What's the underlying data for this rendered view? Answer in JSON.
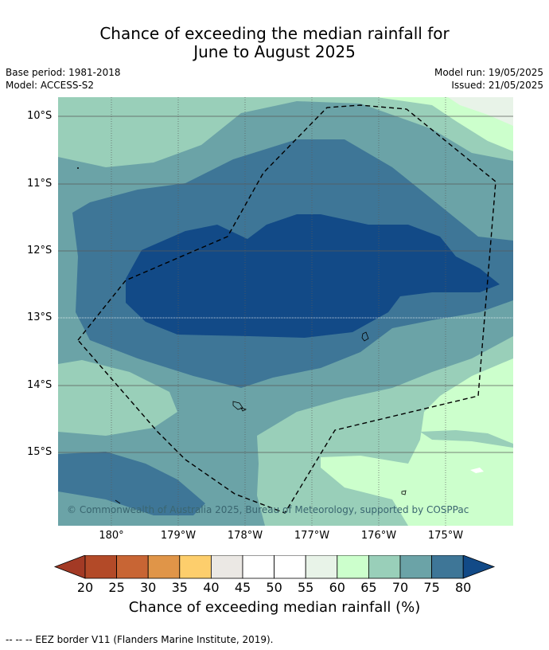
{
  "title": {
    "line1": "Chance of exceeding the median rainfall for",
    "line2": "June to August 2025"
  },
  "meta": {
    "base_period": "Base period: 1981-2018",
    "model": "Model: ACCESS-S2",
    "model_run": "Model run: 19/05/2025",
    "issued": "Issued: 21/05/2025"
  },
  "map": {
    "lat_labels": [
      "10°S",
      "11°S",
      "12°S",
      "13°S",
      "14°S",
      "15°S"
    ],
    "lon_labels": [
      "180°",
      "179°W",
      "178°W",
      "177°W",
      "176°W",
      "175°W"
    ],
    "copyright": "© Commonwealth of Australia 2025, Bureau of Meteorology, supported by COSPPac",
    "colors": {
      "c60_65": "#ccffcc",
      "c65_70": "#99cfb9",
      "c70_75": "#6ba3a7",
      "c75_80": "#3e7697",
      "c80_plus": "#124a87",
      "c55_60": "#e8f3e8"
    }
  },
  "colorbar": {
    "ticks": [
      "20",
      "25",
      "30",
      "35",
      "40",
      "45",
      "50",
      "55",
      "60",
      "65",
      "70",
      "75",
      "80"
    ],
    "title": "Chance of exceeding median rainfall (%)",
    "colors": [
      "#a33a25",
      "#b34a28",
      "#c86534",
      "#e09548",
      "#fdce6c",
      "#ebe8e4",
      "#ffffff",
      "#ffffff",
      "#e8f3e8",
      "#ccffcc",
      "#99cfb9",
      "#6ba3a7",
      "#3e7697",
      "#124a87"
    ]
  },
  "footer": "-- -- -- EEZ border V11 (Flanders Marine Institute, 2019)."
}
